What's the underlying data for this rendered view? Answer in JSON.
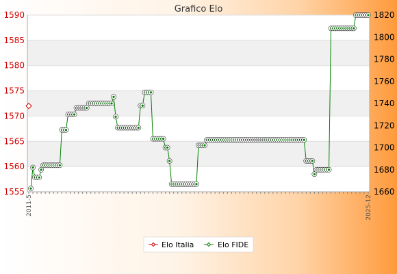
{
  "chart_data": {
    "type": "line",
    "title": "Grafico Elo",
    "legend": {
      "placement": "bottom-center",
      "entries": [
        "Elo Italia",
        "Elo FIDE"
      ]
    },
    "colors": {
      "italia": "#d00000",
      "fide": "#008000",
      "right_axis_text": "#000000",
      "left_axis_text": "#d00000"
    },
    "grid": true,
    "left_axis": {
      "ylim": [
        1555,
        1590
      ],
      "ticks": [
        1555,
        1560,
        1565,
        1570,
        1575,
        1580,
        1585,
        1590
      ],
      "color": "#d00000"
    },
    "right_axis": {
      "ylim": [
        1660,
        1820
      ],
      "ticks": [
        1660,
        1680,
        1700,
        1720,
        1740,
        1760,
        1780,
        1800,
        1820
      ]
    },
    "x_count": 164,
    "x_first_label": "2011-5",
    "x_last_label": "2025-12",
    "series": [
      {
        "name": "Elo Italia",
        "axis": "left",
        "points": [
          {
            "index": 0,
            "value": 1572
          }
        ]
      },
      {
        "name": "Elo FIDE",
        "axis": "right",
        "segments": [
          [
            1,
            1,
            1663
          ],
          [
            2,
            2,
            1682
          ],
          [
            3,
            5,
            1673
          ],
          [
            6,
            6,
            1680
          ],
          [
            7,
            15,
            1684
          ],
          [
            16,
            18,
            1716
          ],
          [
            19,
            22,
            1730
          ],
          [
            23,
            28,
            1736
          ],
          [
            29,
            40,
            1740
          ],
          [
            41,
            41,
            1746
          ],
          [
            42,
            42,
            1728
          ],
          [
            43,
            53,
            1718
          ],
          [
            54,
            55,
            1738
          ],
          [
            56,
            59,
            1750
          ],
          [
            60,
            65,
            1708
          ],
          [
            66,
            67,
            1700
          ],
          [
            68,
            68,
            1688
          ],
          [
            69,
            81,
            1667
          ],
          [
            82,
            85,
            1702
          ],
          [
            86,
            133,
            1707
          ],
          [
            134,
            137,
            1688
          ],
          [
            138,
            138,
            1676
          ],
          [
            139,
            145,
            1680
          ],
          [
            146,
            157,
            1808
          ],
          [
            158,
            164,
            1820
          ]
        ]
      }
    ]
  }
}
